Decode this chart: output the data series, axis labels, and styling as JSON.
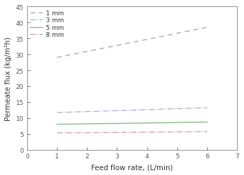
{
  "title": "",
  "xlabel": "Feed flow rate, (L/min)",
  "ylabel": "Permeate flux (kg/m²h)",
  "xlim": [
    0,
    7
  ],
  "ylim": [
    0,
    45
  ],
  "xticks": [
    0,
    1,
    2,
    3,
    4,
    5,
    6,
    7
  ],
  "yticks": [
    0,
    5,
    10,
    15,
    20,
    25,
    30,
    35,
    40,
    45
  ],
  "series": [
    {
      "label": "1 mm",
      "x": [
        1.0,
        6.0
      ],
      "y": [
        29.0,
        38.5
      ],
      "color": "#aaaaaa",
      "linestyle": "--",
      "linewidth": 1.0,
      "dashes": [
        5,
        4
      ]
    },
    {
      "label": "3 mm",
      "x": [
        1.0,
        6.0
      ],
      "y": [
        11.7,
        13.2
      ],
      "color": "#aaaacc",
      "linestyle": "-.",
      "linewidth": 0.9,
      "dashes": null
    },
    {
      "label": "5 mm",
      "x": [
        1.0,
        6.0
      ],
      "y": [
        8.0,
        8.7
      ],
      "color": "#88bb88",
      "linestyle": "-",
      "linewidth": 1.0,
      "dashes": null
    },
    {
      "label": "8 mm",
      "x": [
        1.0,
        6.0
      ],
      "y": [
        5.3,
        5.7
      ],
      "color": "#cc9999",
      "linestyle": "-.",
      "linewidth": 0.9,
      "dashes": null
    }
  ],
  "legend_fontsize": 6.5,
  "axis_fontsize": 7.5,
  "tick_fontsize": 6.5,
  "background_color": "#ffffff",
  "spine_color": "#999999",
  "tick_color": "#555555"
}
